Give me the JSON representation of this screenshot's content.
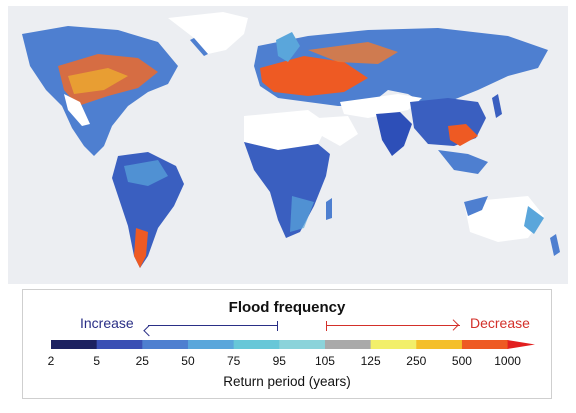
{
  "legend": {
    "title": "Flood frequency",
    "increase_label": "Increase",
    "decrease_label": "Decrease",
    "axis_title": "Return period (years)",
    "ticks": [
      "2",
      "5",
      "25",
      "50",
      "75",
      "95",
      "105",
      "125",
      "250",
      "500",
      "1000"
    ],
    "segment_colors": [
      "#1c2160",
      "#3a4fb4",
      "#4e7fd0",
      "#5aa6db",
      "#67c7d8",
      "#8bd3da",
      "#a9a9a9",
      "#f2ef6a",
      "#f4bf2a",
      "#ee5a23",
      "#e05092",
      "#e21f1f"
    ],
    "increase_color": "#2a2f86",
    "decrease_color": "#d3302a"
  },
  "map": {
    "ocean_color": "#eceef2",
    "no_data_color": "#ffffff",
    "increase_color": "#2d5bc4",
    "decrease_color": "#ee5a23"
  }
}
